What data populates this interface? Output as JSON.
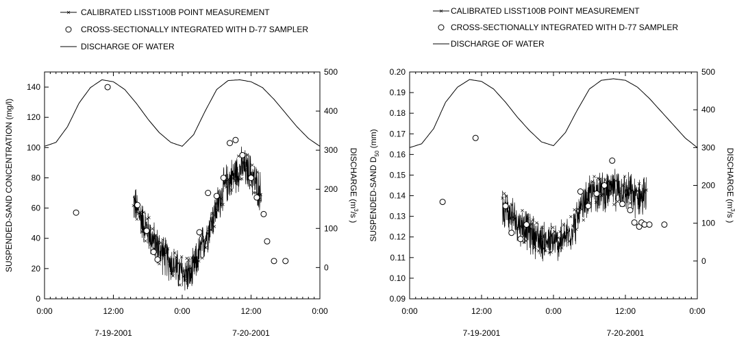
{
  "legend": {
    "line_marker": "CALIBRATED LISST100B POINT MEASUREMENT",
    "circle": "CROSS-SECTIONALLY INTEGRATED WITH D-77 SAMPLER",
    "line": "DISCHARGE OF WATER"
  },
  "colors": {
    "ink": "#000000",
    "background": "#ffffff",
    "circle_fill": "#ffffff"
  },
  "chart_data": [
    {
      "type": "line",
      "ylabel": "SUSPENDED-SAND CONCENTRATION (mg/l)",
      "y2label_prefix": "DISCHARGE (m",
      "y2label_sup": "3",
      "y2label_suffix": "/s )",
      "xlim": [
        0,
        48
      ],
      "ylim": [
        0,
        150
      ],
      "y2lim": [
        -80,
        500
      ],
      "x_ticks": [
        0,
        12,
        24,
        36,
        48
      ],
      "x_tick_labels": [
        "0:00",
        "12:00",
        "0:00",
        "12:00",
        "0:00"
      ],
      "y_ticks": [
        0,
        20,
        40,
        60,
        80,
        100,
        120,
        140
      ],
      "y_tick_labels": [
        "0",
        "20",
        "40",
        "60",
        "80",
        "100",
        "120",
        "140"
      ],
      "y2_ticks": [
        0,
        100,
        200,
        300,
        400,
        500
      ],
      "y2_tick_labels": [
        "0",
        "100",
        "200",
        "300",
        "400",
        "500"
      ],
      "dates": [
        "7-19-2001",
        "7-20-2001"
      ],
      "date_positions": [
        12,
        36
      ],
      "discharge": {
        "x": [
          0,
          2,
          4,
          6,
          8,
          10,
          12,
          14,
          16,
          18,
          20,
          22,
          24,
          26,
          28,
          30,
          32,
          34,
          36,
          38,
          40,
          42,
          44,
          46,
          48
        ],
        "y": [
          310,
          320,
          360,
          420,
          460,
          480,
          475,
          455,
          420,
          380,
          345,
          320,
          310,
          340,
          400,
          455,
          478,
          480,
          475,
          460,
          430,
          395,
          360,
          330,
          310
        ]
      },
      "d77": {
        "x": [
          5.5,
          11,
          16.2,
          17.8,
          19,
          19.7,
          27,
          28.5,
          30,
          31.2,
          32.3,
          33.3,
          34.5,
          36,
          37,
          38.2,
          38.8,
          40,
          42
        ],
        "y": [
          57,
          140,
          62,
          45,
          31,
          26,
          44,
          70,
          68,
          80,
          103,
          105,
          95,
          80,
          67,
          56,
          38,
          25,
          25
        ]
      },
      "lisst_envelope": {
        "x": [
          15.5,
          17,
          19,
          21,
          22.5,
          23.5,
          24.5,
          25.5,
          27,
          28.5,
          30,
          31.5,
          33,
          34.5,
          36,
          37,
          37.8
        ],
        "y": [
          64,
          52,
          38,
          28,
          22,
          18,
          17,
          15,
          30,
          45,
          60,
          75,
          82,
          87,
          83,
          75,
          70
        ]
      }
    },
    {
      "type": "line",
      "ylabel_main": "SUSPENDED-SAND D",
      "ylabel_sub": "50",
      "ylabel_unit": "(mm)",
      "y2label_prefix": "DISCHARGE (m",
      "y2label_sup": "3",
      "y2label_suffix": "/s )",
      "xlim": [
        0,
        48
      ],
      "ylim": [
        0.09,
        0.2
      ],
      "y2lim": [
        -100,
        500
      ],
      "x_ticks": [
        0,
        12,
        24,
        36,
        48
      ],
      "x_tick_labels": [
        "0:00",
        "12:00",
        "0:00",
        "12:00",
        "0:00"
      ],
      "y_ticks": [
        0.09,
        0.1,
        0.11,
        0.12,
        0.13,
        0.14,
        0.15,
        0.16,
        0.17,
        0.18,
        0.19,
        0.2
      ],
      "y_tick_labels": [
        "0.09",
        "0.10",
        "0.11",
        "0.12",
        "0.13",
        "0.14",
        "0.15",
        "0.16",
        "0.17",
        "0.18",
        "0.19",
        "0.20"
      ],
      "y2_ticks": [
        0,
        100,
        200,
        300,
        400,
        500
      ],
      "y2_tick_labels": [
        "0",
        "100",
        "200",
        "300",
        "400",
        "500"
      ],
      "dates": [
        "7-19-2001",
        "7-20-2001"
      ],
      "date_positions": [
        12,
        36
      ],
      "discharge": {
        "x": [
          0,
          2,
          4,
          6,
          8,
          10,
          12,
          14,
          16,
          18,
          20,
          22,
          24,
          26,
          28,
          30,
          32,
          34,
          36,
          38,
          40,
          42,
          44,
          46,
          48
        ],
        "y": [
          300,
          310,
          350,
          420,
          460,
          480,
          475,
          455,
          420,
          380,
          345,
          315,
          305,
          340,
          400,
          455,
          478,
          482,
          478,
          460,
          430,
          395,
          360,
          325,
          300
        ]
      },
      "d77": {
        "x": [
          5.5,
          11,
          16,
          17,
          18.5,
          19.5,
          28.5,
          29.8,
          31.2,
          32.5,
          33.8,
          35.5,
          36.8,
          37.5,
          38.3,
          38.7,
          39.2,
          40,
          42.5
        ],
        "y": [
          0.137,
          0.168,
          0.135,
          0.122,
          0.119,
          0.126,
          0.142,
          0.135,
          0.141,
          0.145,
          0.157,
          0.136,
          0.133,
          0.127,
          0.125,
          0.127,
          0.126,
          0.126,
          0.126
        ]
      },
      "lisst_envelope": {
        "x": [
          15.5,
          17,
          19,
          21,
          22.5,
          24,
          25.5,
          27,
          28.5,
          30,
          31.5,
          33,
          34.5,
          36,
          37.5,
          38.5,
          39.5
        ],
        "y": [
          0.135,
          0.13,
          0.125,
          0.12,
          0.118,
          0.117,
          0.118,
          0.123,
          0.132,
          0.14,
          0.143,
          0.142,
          0.143,
          0.142,
          0.14,
          0.139,
          0.14
        ]
      }
    }
  ]
}
